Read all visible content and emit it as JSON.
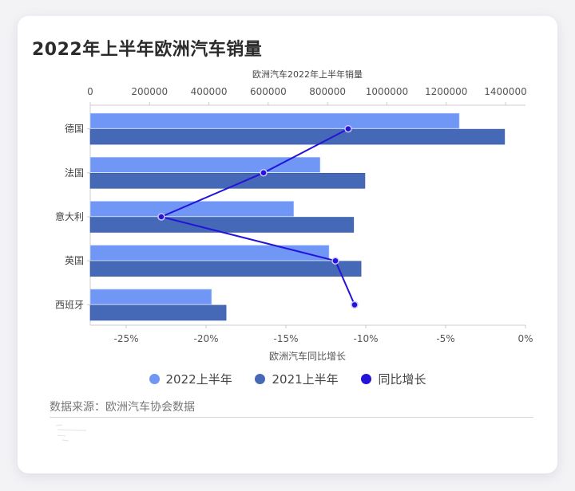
{
  "title": "2022年上半年欧洲汽车销量",
  "top_axis_title": "欧洲汽车2022年上半年销量",
  "bottom_axis_title": "欧洲汽车同比增长",
  "source": "数据来源：欧洲汽车协会数据",
  "legend": [
    {
      "label": "2022上半年",
      "color": "#7097f6"
    },
    {
      "label": "2021上半年",
      "color": "#4569b6"
    },
    {
      "label": "同比增长",
      "color": "#2414d8"
    }
  ],
  "chart_data": {
    "type": "bar",
    "orientation": "horizontal",
    "title": "2022年上半年欧洲汽车销量",
    "categories": [
      "德国",
      "法国",
      "意大利",
      "英国",
      "西班牙"
    ],
    "series": [
      {
        "name": "2022上半年",
        "type": "bar",
        "axis": "top",
        "values": [
          1244000,
          775000,
          686000,
          805000,
          409000
        ]
      },
      {
        "name": "2021上半年",
        "type": "bar",
        "axis": "top",
        "values": [
          1397000,
          926000,
          888000,
          913000,
          458000
        ]
      },
      {
        "name": "同比增长",
        "type": "line",
        "axis": "bottom",
        "unit": "%",
        "values": [
          -11.1,
          -16.4,
          -22.8,
          -11.9,
          -10.7
        ]
      }
    ],
    "top_axis": {
      "label": "欧洲汽车2022年上半年销量",
      "range": [
        0,
        1400000
      ],
      "ticks": [
        "0",
        "200000",
        "400000",
        "600000",
        "800000",
        "1000000",
        "1200000",
        "1400000"
      ]
    },
    "bottom_axis": {
      "label": "欧洲汽车同比增长",
      "range": [
        -27.3,
        0
      ],
      "ticks": [
        "-25%",
        "-20%",
        "-15%",
        "-10%",
        "-5%",
        "0%"
      ]
    },
    "legend_position": "bottom",
    "grid": false
  }
}
